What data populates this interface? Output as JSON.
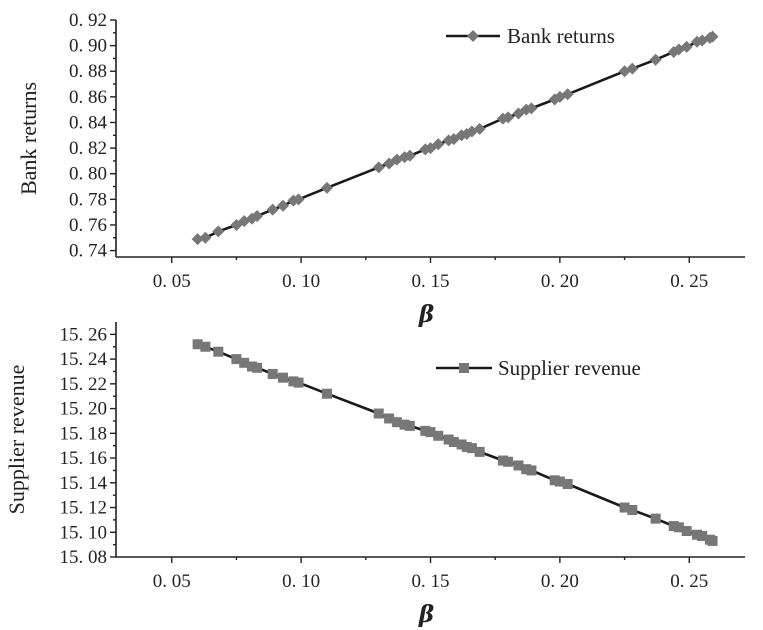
{
  "chart_data": [
    {
      "type": "line",
      "xlabel": "β",
      "ylabel": "Bank returns",
      "xlim": [
        0.03,
        0.27
      ],
      "ylim": [
        0.735,
        0.92
      ],
      "xticks": [
        "0. 05",
        "0. 10",
        "0. 15",
        "0. 20",
        "0. 25"
      ],
      "xtick_values": [
        0.05,
        0.1,
        0.15,
        0.2,
        0.25
      ],
      "yticks": [
        "0. 74",
        "0. 76",
        "0. 78",
        "0. 80",
        "0. 82",
        "0. 84",
        "0. 86",
        "0. 88",
        "0. 90",
        "0. 92"
      ],
      "ytick_values": [
        0.74,
        0.76,
        0.78,
        0.8,
        0.82,
        0.84,
        0.86,
        0.88,
        0.9,
        0.92
      ],
      "legend_position": "top-right",
      "marker": "diamond",
      "color": "#777777",
      "line_color": "#1a1a1a",
      "series": [
        {
          "name": "Bank returns",
          "x": [
            0.06,
            0.063,
            0.068,
            0.075,
            0.078,
            0.081,
            0.083,
            0.089,
            0.093,
            0.097,
            0.099,
            0.11,
            0.13,
            0.134,
            0.137,
            0.14,
            0.142,
            0.148,
            0.15,
            0.153,
            0.157,
            0.159,
            0.162,
            0.164,
            0.166,
            0.169,
            0.178,
            0.18,
            0.184,
            0.187,
            0.189,
            0.198,
            0.2,
            0.203,
            0.225,
            0.228,
            0.237,
            0.244,
            0.246,
            0.249,
            0.253,
            0.255,
            0.258,
            0.259
          ],
          "y": [
            0.749,
            0.75,
            0.755,
            0.76,
            0.763,
            0.765,
            0.767,
            0.772,
            0.775,
            0.779,
            0.78,
            0.789,
            0.805,
            0.808,
            0.811,
            0.813,
            0.814,
            0.819,
            0.82,
            0.823,
            0.826,
            0.827,
            0.83,
            0.831,
            0.833,
            0.835,
            0.843,
            0.844,
            0.847,
            0.85,
            0.851,
            0.858,
            0.86,
            0.862,
            0.88,
            0.882,
            0.889,
            0.895,
            0.897,
            0.899,
            0.903,
            0.904,
            0.906,
            0.907
          ]
        }
      ]
    },
    {
      "type": "line",
      "xlabel": "β",
      "ylabel": "Supplier revenue",
      "xlim": [
        0.03,
        0.27
      ],
      "ylim": [
        15.08,
        15.27
      ],
      "xticks": [
        "0. 05",
        "0. 10",
        "0. 15",
        "0. 20",
        "0. 25"
      ],
      "xtick_values": [
        0.05,
        0.1,
        0.15,
        0.2,
        0.25
      ],
      "yticks": [
        "15. 08",
        "15. 10",
        "15. 12",
        "15. 14",
        "15. 16",
        "15. 18",
        "15. 20",
        "15. 22",
        "15. 24",
        "15. 26"
      ],
      "ytick_values": [
        15.08,
        15.1,
        15.12,
        15.14,
        15.16,
        15.18,
        15.2,
        15.22,
        15.24,
        15.26
      ],
      "legend_position": "top-right",
      "marker": "square",
      "color": "#777777",
      "line_color": "#1a1a1a",
      "series": [
        {
          "name": "Supplier revenue",
          "x": [
            0.06,
            0.063,
            0.068,
            0.075,
            0.078,
            0.081,
            0.083,
            0.089,
            0.093,
            0.097,
            0.099,
            0.11,
            0.13,
            0.134,
            0.137,
            0.14,
            0.142,
            0.148,
            0.15,
            0.153,
            0.157,
            0.159,
            0.162,
            0.164,
            0.166,
            0.169,
            0.178,
            0.18,
            0.184,
            0.187,
            0.189,
            0.198,
            0.2,
            0.203,
            0.225,
            0.228,
            0.237,
            0.244,
            0.246,
            0.249,
            0.253,
            0.255,
            0.258,
            0.259
          ],
          "y": [
            15.252,
            15.25,
            15.246,
            15.24,
            15.237,
            15.234,
            15.233,
            15.228,
            15.225,
            15.222,
            15.221,
            15.212,
            15.196,
            15.192,
            15.189,
            15.187,
            15.186,
            15.182,
            15.181,
            15.178,
            15.175,
            15.173,
            15.171,
            15.169,
            15.168,
            15.165,
            15.158,
            15.157,
            15.154,
            15.151,
            15.15,
            15.142,
            15.141,
            15.139,
            15.12,
            15.118,
            15.111,
            15.105,
            15.104,
            15.101,
            15.098,
            15.097,
            15.094,
            15.093
          ]
        }
      ]
    }
  ]
}
